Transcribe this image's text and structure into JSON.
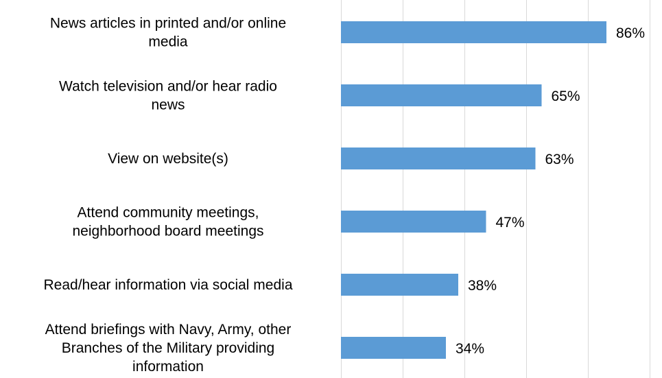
{
  "chart_data": {
    "type": "bar",
    "orientation": "horizontal",
    "title": "",
    "xlabel": "",
    "ylabel": "",
    "xlim": [
      0,
      100
    ],
    "grid": true,
    "legend": "none",
    "bar_color": "#5b9bd5",
    "categories": [
      [
        "News articles in printed and/or online",
        "media"
      ],
      [
        "Watch television and/or hear radio",
        "news"
      ],
      [
        "View on website(s)"
      ],
      [
        "Attend community meetings,",
        "neighborhood board meetings"
      ],
      [
        "Read/hear information via social media"
      ],
      [
        "Attend briefings with Navy, Army, other",
        "Branches of the Military providing",
        "information"
      ]
    ],
    "values": [
      86,
      65,
      63,
      47,
      38,
      34
    ],
    "value_labels": [
      "86%",
      "65%",
      "63%",
      "47%",
      "38%",
      "34%"
    ]
  }
}
